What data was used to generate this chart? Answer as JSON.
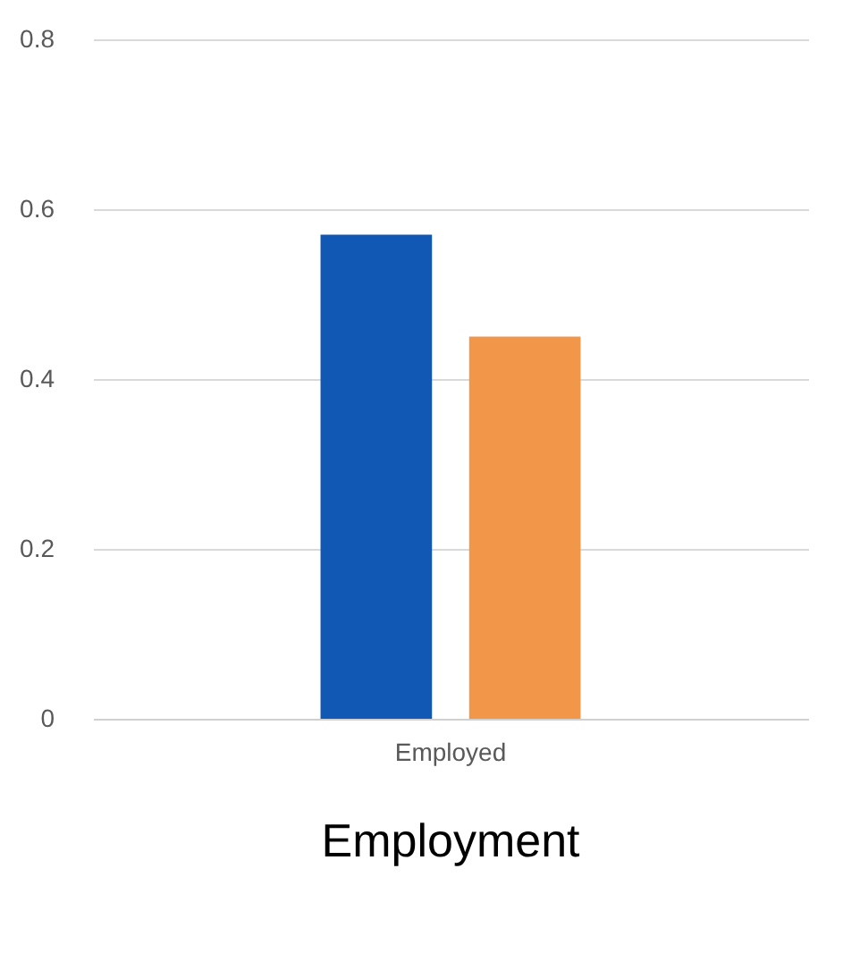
{
  "chart_data": {
    "type": "bar",
    "title": "Employment",
    "categories": [
      "Employed"
    ],
    "series": [
      {
        "color": "#1158b5",
        "values": [
          0.57
        ]
      },
      {
        "color": "#f2974a",
        "values": [
          0.45
        ]
      }
    ],
    "ylim": [
      0,
      0.8
    ],
    "yticks": [
      0,
      0.2,
      0.4,
      0.6,
      0.8
    ],
    "grid": "y",
    "legend": false
  }
}
